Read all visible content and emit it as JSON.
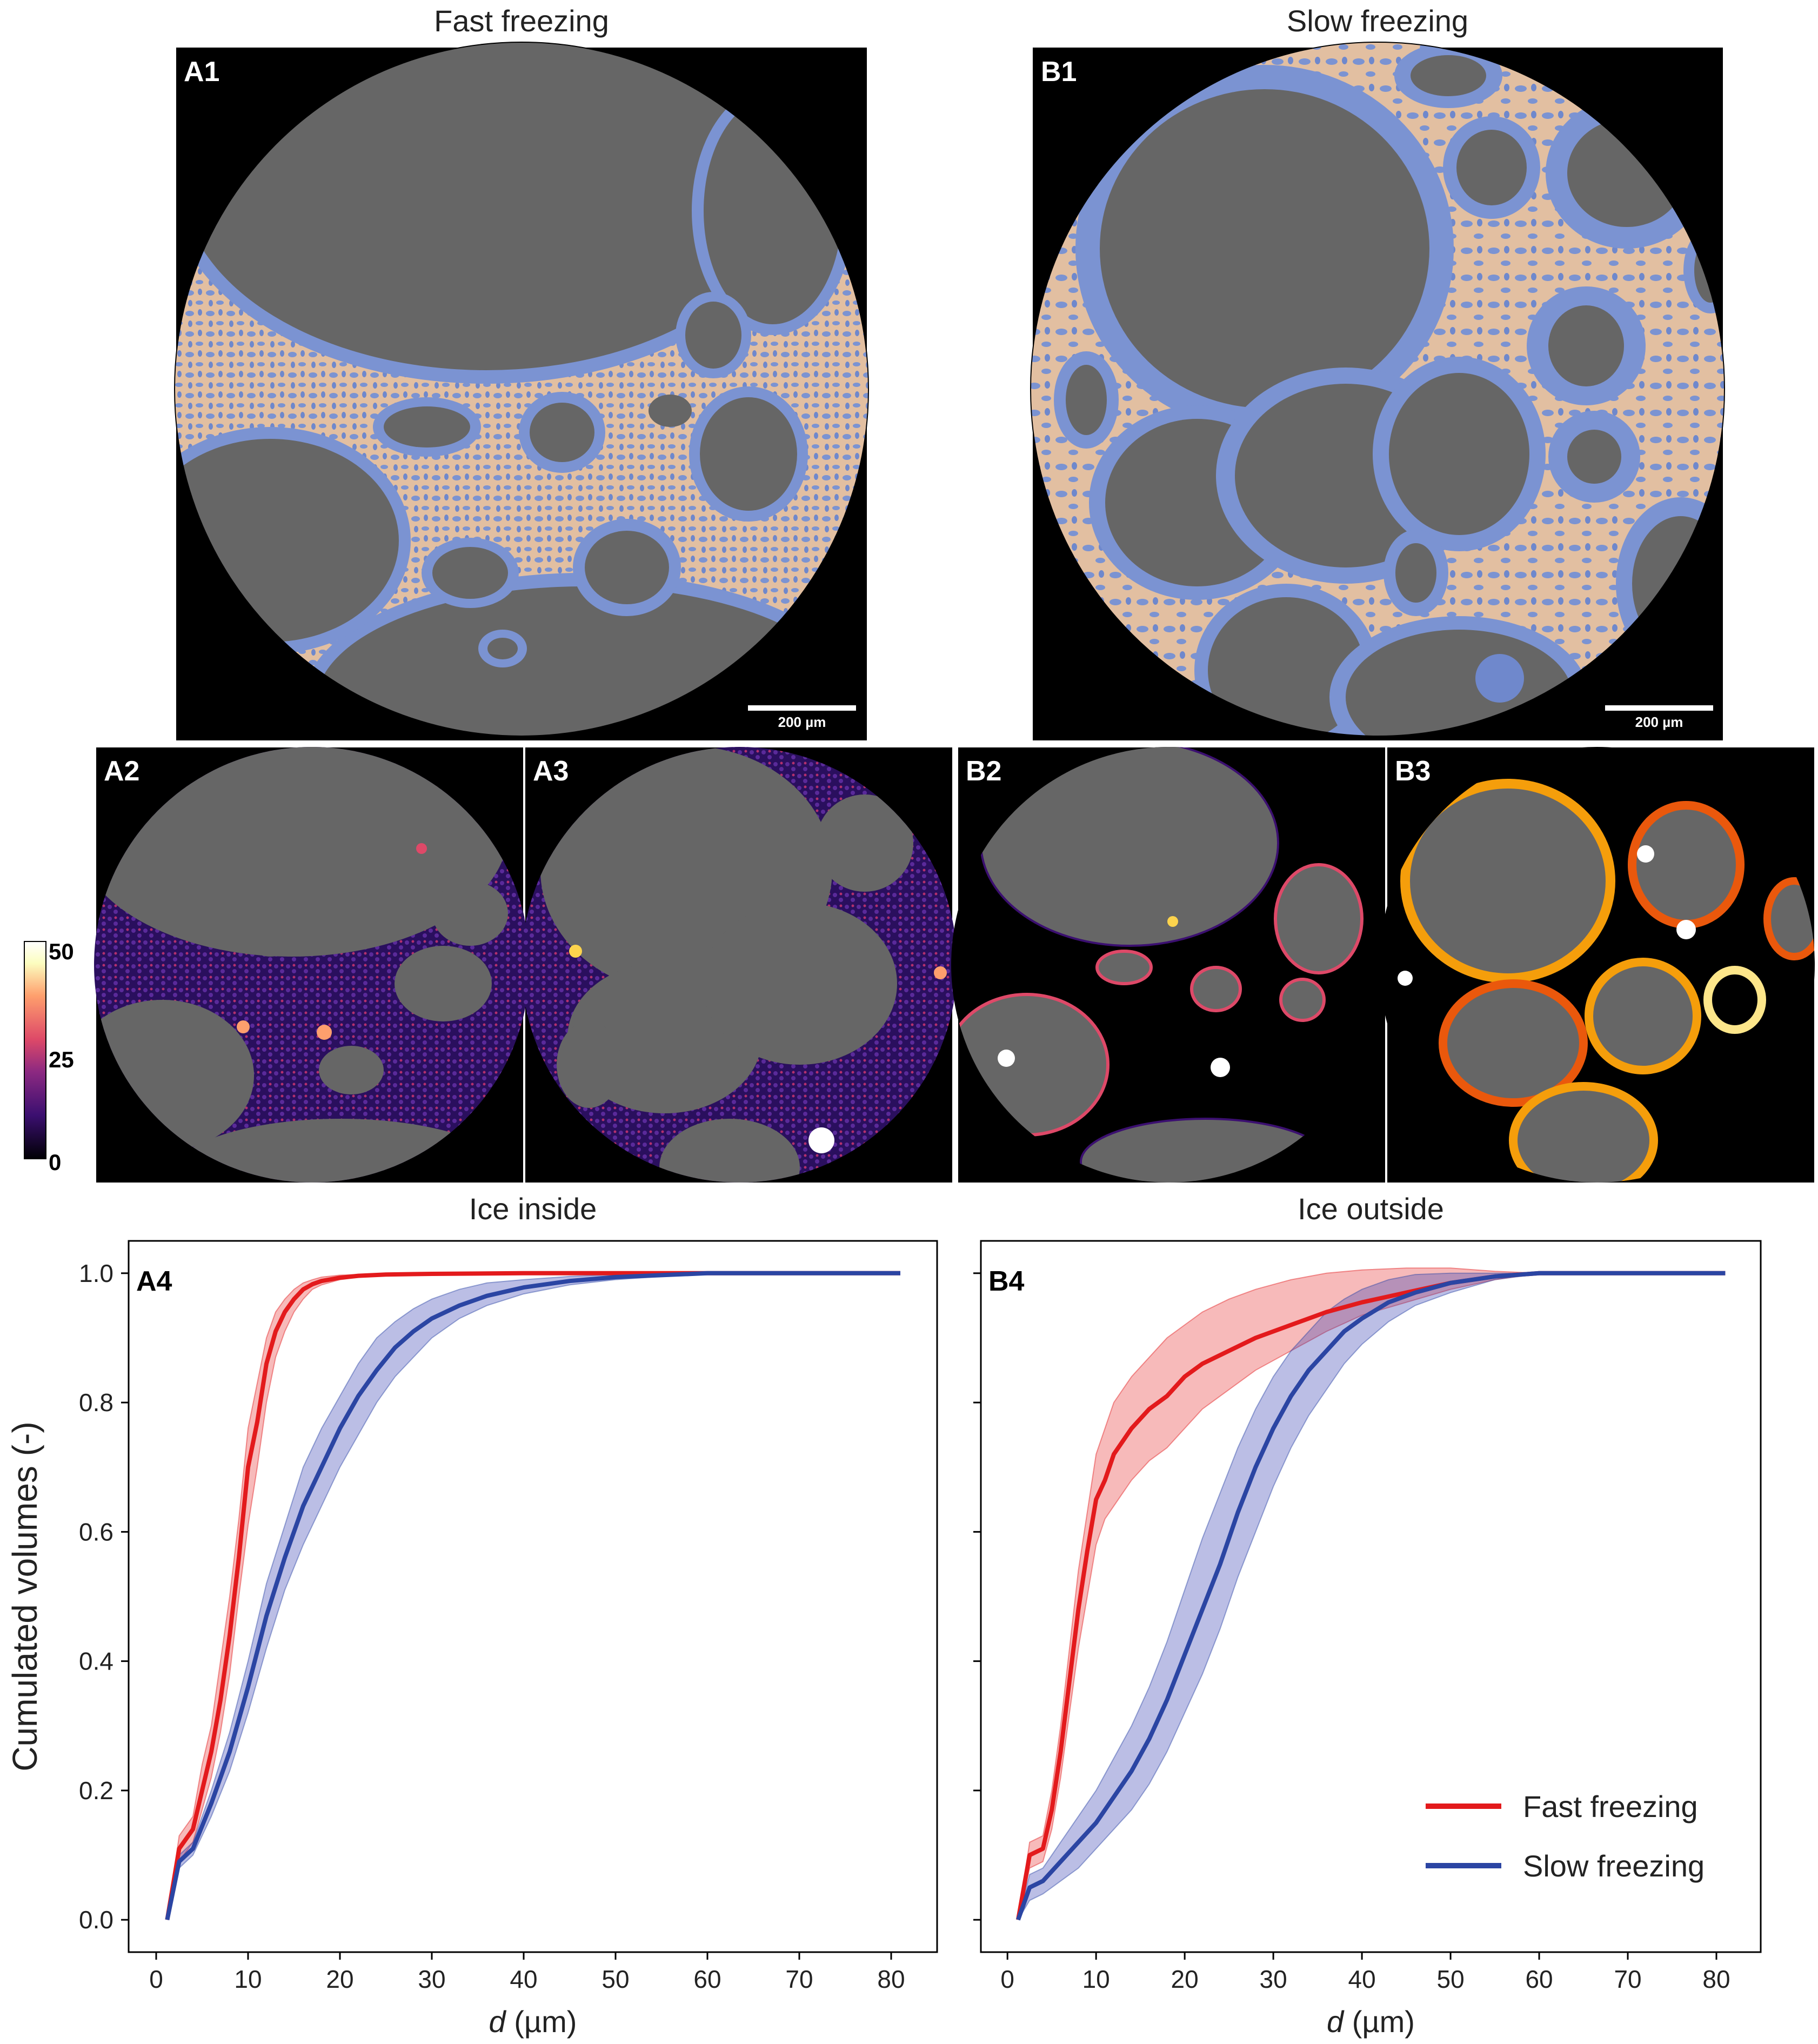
{
  "titles": {
    "fast": "Fast freezing",
    "slow": "Slow freezing",
    "ice_inside": "Ice inside",
    "ice_outside": "Ice outside"
  },
  "panels": {
    "A1": "A1",
    "B1": "B1",
    "A2": "A2",
    "A3": "A3",
    "B2": "B2",
    "B3": "B3",
    "A4": "A4",
    "B4": "B4"
  },
  "scalebar": {
    "label": "200 µm"
  },
  "colorbar": {
    "max": "50",
    "mid": "25",
    "min": "0"
  },
  "colors": {
    "pore_grey": "#666666",
    "ice_blue": "#7b93d2",
    "matrix_tan": "#e2bfa1",
    "fast_line": "#e31a1c",
    "slow_line": "#2b45a3"
  },
  "chart_data": [
    {
      "type": "line",
      "panel": "A4",
      "title": "Ice inside",
      "xlabel_italic": "d",
      "xlabel_rest": " (µm)",
      "ylabel": "Cumulated volumes (-)",
      "xlim": [
        -3,
        85
      ],
      "ylim": [
        -0.05,
        1.05
      ],
      "xticks": [
        "0",
        "10",
        "20",
        "30",
        "40",
        "50",
        "60",
        "70",
        "80"
      ],
      "yticks": [
        "0.0",
        "0.2",
        "0.4",
        "0.6",
        "0.8",
        "1.0"
      ],
      "series": [
        {
          "name": "Fast freezing",
          "x": [
            1.2,
            2.5,
            4,
            5,
            6,
            7,
            8,
            9,
            10,
            11,
            12,
            13,
            14,
            15,
            16,
            17,
            18,
            20,
            22,
            25,
            30,
            40,
            60,
            81
          ],
          "y": [
            0,
            0.11,
            0.14,
            0.2,
            0.26,
            0.34,
            0.44,
            0.56,
            0.7,
            0.77,
            0.86,
            0.91,
            0.94,
            0.96,
            0.975,
            0.983,
            0.988,
            0.993,
            0.996,
            0.998,
            0.999,
            1.0,
            1.0,
            1.0
          ],
          "lo": [
            0,
            0.09,
            0.12,
            0.17,
            0.22,
            0.29,
            0.38,
            0.5,
            0.61,
            0.7,
            0.8,
            0.87,
            0.91,
            0.94,
            0.96,
            0.975,
            0.982,
            0.99,
            0.994,
            0.997,
            0.999,
            1.0,
            1.0,
            1.0
          ],
          "hi": [
            0,
            0.13,
            0.16,
            0.24,
            0.3,
            0.4,
            0.5,
            0.62,
            0.76,
            0.83,
            0.9,
            0.94,
            0.96,
            0.975,
            0.985,
            0.99,
            0.994,
            0.997,
            0.998,
            0.999,
            1.0,
            1.0,
            1.0,
            1.0
          ]
        },
        {
          "name": "Slow freezing",
          "x": [
            1.2,
            2.5,
            4,
            6,
            8,
            10,
            12,
            14,
            16,
            18,
            20,
            22,
            24,
            26,
            28,
            30,
            33,
            36,
            40,
            45,
            50,
            55,
            60,
            70,
            81
          ],
          "y": [
            0,
            0.09,
            0.11,
            0.18,
            0.26,
            0.36,
            0.47,
            0.56,
            0.64,
            0.7,
            0.76,
            0.81,
            0.85,
            0.885,
            0.91,
            0.93,
            0.95,
            0.965,
            0.978,
            0.988,
            0.994,
            0.997,
            1.0,
            1.0,
            1.0
          ],
          "lo": [
            0,
            0.08,
            0.1,
            0.16,
            0.23,
            0.32,
            0.42,
            0.51,
            0.58,
            0.64,
            0.7,
            0.75,
            0.8,
            0.84,
            0.87,
            0.9,
            0.93,
            0.95,
            0.968,
            0.982,
            0.99,
            0.995,
            0.999,
            1.0,
            1.0
          ],
          "hi": [
            0,
            0.1,
            0.12,
            0.2,
            0.29,
            0.4,
            0.52,
            0.61,
            0.7,
            0.76,
            0.81,
            0.86,
            0.9,
            0.925,
            0.945,
            0.96,
            0.975,
            0.985,
            0.99,
            0.995,
            0.998,
            1.0,
            1.0,
            1.0,
            1.0
          ]
        }
      ]
    },
    {
      "type": "line",
      "panel": "B4",
      "title": "Ice outside",
      "xlabel_italic": "d",
      "xlabel_rest": " (µm)",
      "ylabel": "",
      "xlim": [
        -3,
        85
      ],
      "ylim": [
        -0.05,
        1.05
      ],
      "xticks": [
        "0",
        "10",
        "20",
        "30",
        "40",
        "50",
        "60",
        "70",
        "80"
      ],
      "yticks": [],
      "legend": "lower right",
      "series": [
        {
          "name": "Fast freezing",
          "x": [
            1.2,
            2.5,
            4,
            5,
            6,
            7,
            8,
            9,
            10,
            11,
            12,
            14,
            16,
            18,
            20,
            22,
            25,
            28,
            32,
            36,
            40,
            45,
            50,
            55,
            60,
            70,
            81
          ],
          "y": [
            0,
            0.1,
            0.11,
            0.17,
            0.26,
            0.37,
            0.48,
            0.57,
            0.65,
            0.68,
            0.72,
            0.76,
            0.79,
            0.81,
            0.84,
            0.86,
            0.88,
            0.9,
            0.92,
            0.94,
            0.955,
            0.97,
            0.985,
            0.995,
            1.0,
            1.0,
            1.0
          ],
          "lo": [
            0,
            0.08,
            0.09,
            0.14,
            0.22,
            0.32,
            0.42,
            0.5,
            0.58,
            0.62,
            0.64,
            0.68,
            0.71,
            0.73,
            0.76,
            0.79,
            0.82,
            0.85,
            0.88,
            0.91,
            0.935,
            0.955,
            0.975,
            0.99,
            1.0,
            1.0,
            1.0
          ],
          "hi": [
            0,
            0.12,
            0.13,
            0.2,
            0.3,
            0.42,
            0.54,
            0.63,
            0.72,
            0.76,
            0.8,
            0.84,
            0.87,
            0.9,
            0.92,
            0.94,
            0.96,
            0.975,
            0.99,
            1.0,
            1.005,
            1.008,
            1.008,
            1.003,
            1.0,
            1.0,
            1.0
          ]
        },
        {
          "name": "Slow freezing",
          "x": [
            1.2,
            2.5,
            4,
            6,
            8,
            10,
            12,
            14,
            16,
            18,
            20,
            22,
            24,
            26,
            28,
            30,
            32,
            34,
            36,
            38,
            40,
            43,
            46,
            50,
            55,
            60,
            70,
            81
          ],
          "y": [
            0,
            0.05,
            0.06,
            0.09,
            0.12,
            0.15,
            0.19,
            0.23,
            0.28,
            0.34,
            0.41,
            0.48,
            0.55,
            0.63,
            0.7,
            0.76,
            0.81,
            0.85,
            0.88,
            0.91,
            0.93,
            0.955,
            0.97,
            0.985,
            0.995,
            1.0,
            1.0,
            1.0
          ],
          "lo": [
            0,
            0.03,
            0.04,
            0.06,
            0.08,
            0.11,
            0.14,
            0.17,
            0.21,
            0.26,
            0.32,
            0.38,
            0.45,
            0.53,
            0.6,
            0.67,
            0.73,
            0.78,
            0.82,
            0.86,
            0.89,
            0.925,
            0.95,
            0.97,
            0.99,
            0.999,
            1.0,
            1.0
          ],
          "hi": [
            0,
            0.07,
            0.08,
            0.12,
            0.16,
            0.2,
            0.25,
            0.3,
            0.36,
            0.43,
            0.51,
            0.59,
            0.66,
            0.73,
            0.79,
            0.84,
            0.88,
            0.91,
            0.94,
            0.96,
            0.975,
            0.99,
            0.998,
            1.0,
            1.0,
            1.0,
            1.0,
            1.0
          ]
        }
      ]
    }
  ]
}
